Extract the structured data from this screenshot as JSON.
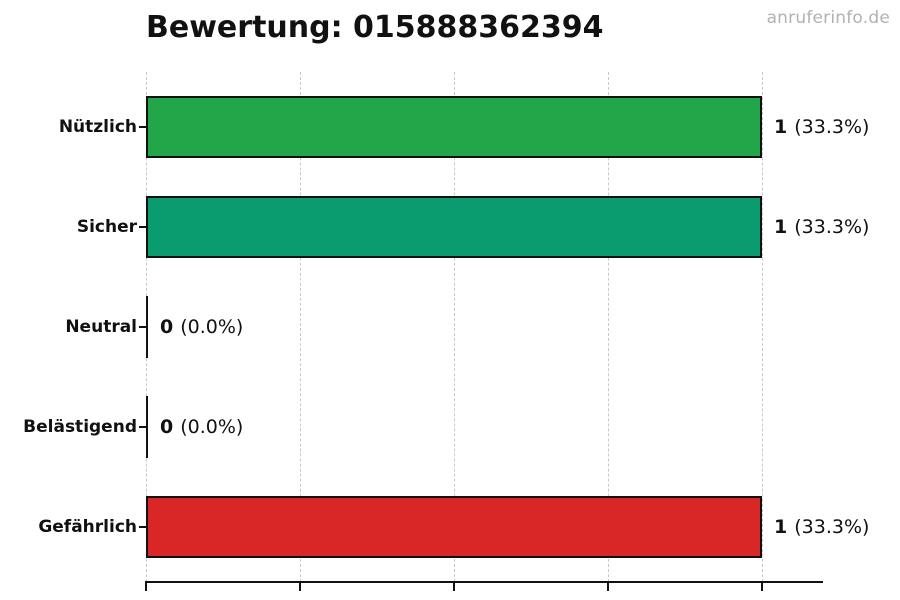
{
  "watermark": {
    "text": "anruferinfo.de",
    "color": "#b1b1b1"
  },
  "chart_data": {
    "type": "bar",
    "orientation": "horizontal",
    "title": "Bewertung: 015888362394",
    "categories": [
      "Nützlich",
      "Sicher",
      "Neutral",
      "Belästigend",
      "Gefährlich"
    ],
    "values": [
      1,
      1,
      0,
      0,
      1
    ],
    "percentages": [
      33.3,
      33.3,
      0.0,
      0.0,
      33.3
    ],
    "rows": [
      {
        "label": "Nützlich",
        "value": "1",
        "pct_label": "(33.3%)",
        "numeric": 1,
        "color": "#21a74a"
      },
      {
        "label": "Sicher",
        "value": "1",
        "pct_label": "(33.3%)",
        "numeric": 1,
        "color": "#0a9b6e"
      },
      {
        "label": "Neutral",
        "value": "0",
        "pct_label": "(0.0%)",
        "numeric": 0,
        "color": null
      },
      {
        "label": "Belästigend",
        "value": "0",
        "pct_label": "(0.0%)",
        "numeric": 0,
        "color": null
      },
      {
        "label": "Gefährlich",
        "value": "1",
        "pct_label": "(33.3%)",
        "numeric": 1,
        "color": "#d92728"
      }
    ],
    "axis": {
      "xmin": 0,
      "xmax": 1,
      "ticks": [
        0,
        0.25,
        0.5,
        0.75,
        1
      ],
      "tick_labels_visible": false,
      "grid": "dashed"
    },
    "bar_edge_color": "#111111",
    "grid_color": "#c9c9c9",
    "legend": "none"
  }
}
